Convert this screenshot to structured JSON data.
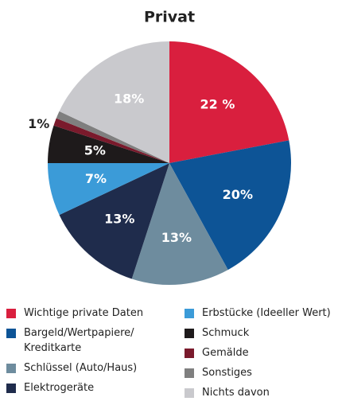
{
  "chart_data": {
    "type": "pie",
    "title": "Privat",
    "series": [
      {
        "name": "Wichtige private Daten",
        "color": "#d91f3e",
        "values": [
          22
        ]
      },
      {
        "name": "Bargeld/Wertpapiere/ Kreditkarte",
        "color": "#0d5496",
        "values": [
          20
        ]
      },
      {
        "name": "Schlüssel (Auto/Haus)",
        "color": "#6e8c9e",
        "values": [
          13
        ]
      },
      {
        "name": "Elektrogeräte",
        "color": "#1f2c4c",
        "values": [
          13
        ]
      },
      {
        "name": "Erbstücke (Ideeller Wert)",
        "color": "#3b9bd8",
        "values": [
          7
        ]
      },
      {
        "name": "Schmuck",
        "color": "#1e1a1b",
        "values": [
          5
        ]
      },
      {
        "name": "Gemälde",
        "color": "#7a1a2c",
        "values": [
          1
        ]
      },
      {
        "name": "Sonstiges",
        "color": "#7f7f7f",
        "values": [
          1
        ]
      },
      {
        "name": "Nichts davon",
        "color": "#c9c9cd",
        "values": [
          18
        ]
      }
    ],
    "value_labels": [
      "22 %",
      "20%",
      "13%",
      "13%",
      "7%",
      "5%",
      null,
      "1%",
      "18%"
    ],
    "legend": "bottom"
  }
}
